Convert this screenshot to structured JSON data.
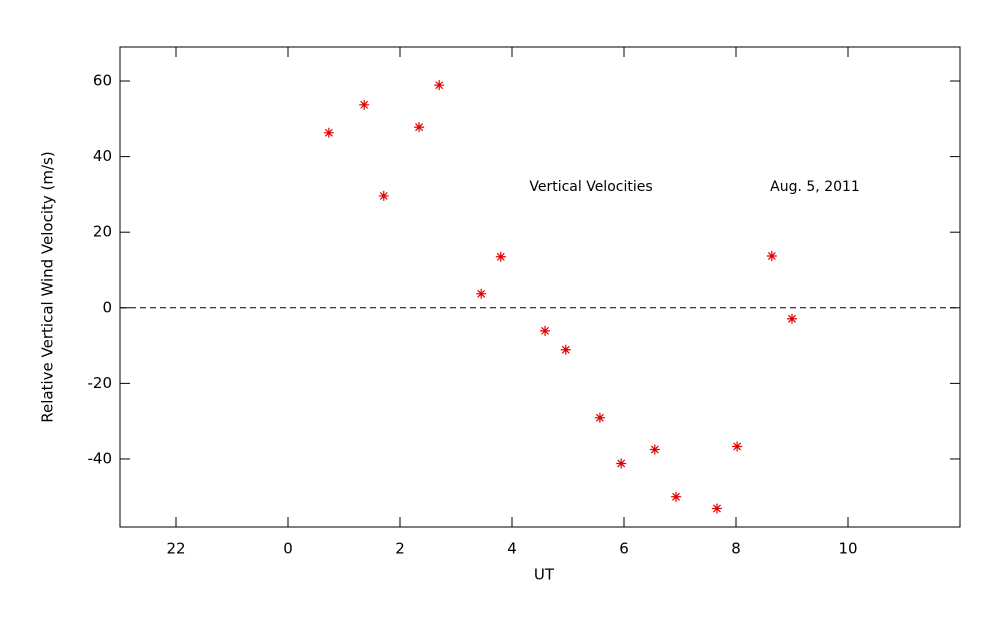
{
  "chart_data": {
    "type": "scatter",
    "xlabel": "UT",
    "ylabel": "Relative Vertical Wind Velocity (m/s)",
    "annotations": [
      "Vertical Velocities",
      "Aug. 5, 2011"
    ],
    "series": [
      {
        "color": "#e00000",
        "marker": "asterisk",
        "x": [
          0.73,
          1.36,
          1.71,
          2.34,
          2.7,
          3.45,
          3.8,
          4.59,
          4.96,
          5.57,
          5.95,
          6.55,
          6.93,
          7.66,
          8.02,
          8.64,
          9.0
        ],
        "values": [
          46.3,
          53.7,
          29.6,
          47.8,
          58.9,
          3.7,
          13.5,
          -6.1,
          -11.1,
          -29.1,
          -41.2,
          -37.5,
          -50.0,
          -53.1,
          -36.7,
          13.7,
          -2.9
        ]
      }
    ],
    "xlim": [
      -3,
      12
    ],
    "xticks": [
      {
        "value": -2,
        "label": "22"
      },
      0,
      2,
      4,
      6,
      8,
      10
    ],
    "ylim": [
      -58,
      69
    ],
    "yticks": [
      -40,
      -20,
      0,
      20,
      40,
      60
    ],
    "hline": 0
  }
}
